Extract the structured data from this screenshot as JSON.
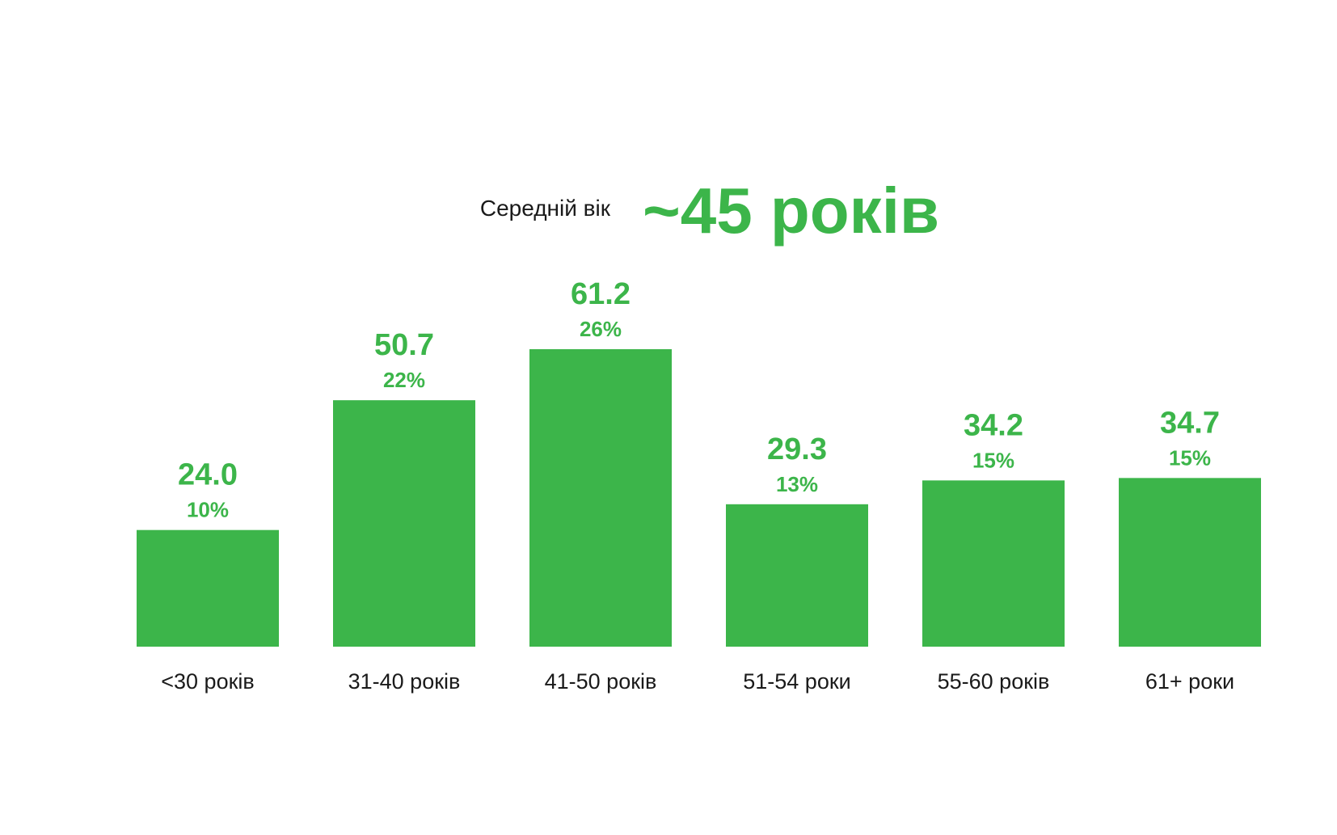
{
  "headline": {
    "label": "Середній вік",
    "value": "~45 років"
  },
  "colors": {
    "accent": "#3cb54a",
    "text": "#1a1a1a",
    "background": "#ffffff"
  },
  "chart_data": {
    "type": "bar",
    "title": "",
    "xlabel": "",
    "ylabel": "",
    "categories": [
      "<30 років",
      "31-40 років",
      "41-50 років",
      "51-54 роки",
      "55-60 років",
      "61+ роки"
    ],
    "values": [
      24.0,
      50.7,
      61.2,
      29.3,
      34.2,
      34.7
    ],
    "value_labels": [
      "24.0",
      "50.7",
      "61.2",
      "29.3",
      "34.2",
      "34.7"
    ],
    "shares": [
      "10%",
      "22%",
      "26%",
      "13%",
      "15%",
      "15%"
    ],
    "ylim": [
      0,
      61.2
    ],
    "grid": false,
    "legend": "none"
  }
}
